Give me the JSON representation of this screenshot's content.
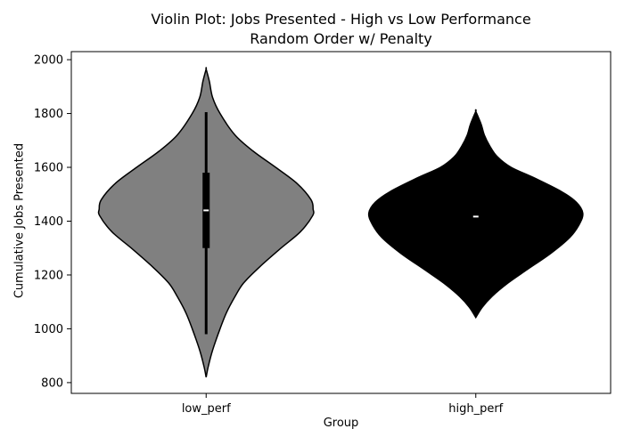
{
  "chart_data": {
    "type": "violin",
    "title": "Violin Plot: Jobs Presented - High vs Low Performance",
    "subtitle": "Random Order w/ Penalty",
    "xlabel": "Group",
    "ylabel": "Cumulative Jobs Presented",
    "categories": [
      "low_perf",
      "high_perf"
    ],
    "ylim": [
      760,
      2030
    ],
    "yticks": [
      800,
      1000,
      1200,
      1400,
      1600,
      1800,
      2000
    ],
    "grid": false,
    "legend": "none",
    "series": [
      {
        "category": "low_perf",
        "color": "#808080",
        "min": 820,
        "max": 1965,
        "q1": 1300,
        "median": 1440,
        "q3": 1580,
        "whisker_low": 980,
        "whisker_high": 1805,
        "density": [
          [
            820,
            0.0
          ],
          [
            860,
            0.02
          ],
          [
            920,
            0.06
          ],
          [
            1000,
            0.13
          ],
          [
            1060,
            0.19
          ],
          [
            1120,
            0.27
          ],
          [
            1170,
            0.35
          ],
          [
            1230,
            0.5
          ],
          [
            1300,
            0.7
          ],
          [
            1360,
            0.88
          ],
          [
            1420,
            0.995
          ],
          [
            1445,
            1.0
          ],
          [
            1480,
            0.98
          ],
          [
            1540,
            0.85
          ],
          [
            1600,
            0.65
          ],
          [
            1660,
            0.44
          ],
          [
            1720,
            0.27
          ],
          [
            1800,
            0.13
          ],
          [
            1860,
            0.06
          ],
          [
            1920,
            0.03
          ],
          [
            1965,
            0.0
          ]
        ]
      },
      {
        "category": "high_perf",
        "color": "#000000",
        "min": 1042,
        "max": 1808,
        "median": 1417,
        "density": [
          [
            1042,
            0.0
          ],
          [
            1080,
            0.06
          ],
          [
            1120,
            0.15
          ],
          [
            1170,
            0.3
          ],
          [
            1220,
            0.48
          ],
          [
            1280,
            0.7
          ],
          [
            1340,
            0.88
          ],
          [
            1390,
            0.97
          ],
          [
            1430,
            1.0
          ],
          [
            1470,
            0.94
          ],
          [
            1510,
            0.8
          ],
          [
            1560,
            0.55
          ],
          [
            1600,
            0.33
          ],
          [
            1640,
            0.2
          ],
          [
            1680,
            0.13
          ],
          [
            1720,
            0.08
          ],
          [
            1760,
            0.05
          ],
          [
            1808,
            0.0
          ]
        ]
      }
    ]
  }
}
